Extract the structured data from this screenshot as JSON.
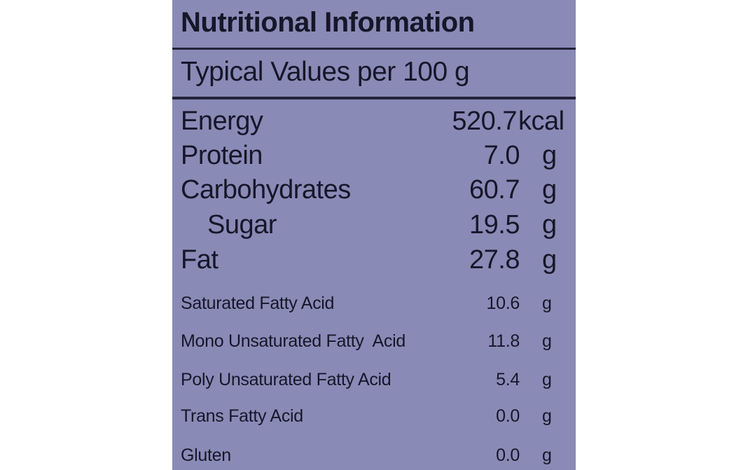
{
  "label": {
    "title": "Nutritional Information",
    "subtitle": "Typical Values per 100 g",
    "background_color": "#8a8ab6",
    "text_color": "#16162a",
    "rows": [
      {
        "name": "Energy",
        "value": "520.7",
        "unit": "kcal"
      },
      {
        "name": "Protein",
        "value": "7.0",
        "unit": "g"
      },
      {
        "name": "Carbohydrates",
        "value": "60.7",
        "unit": "g"
      },
      {
        "name": "Sugar",
        "value": "19.5",
        "unit": "g"
      },
      {
        "name": "Fat",
        "value": "27.8",
        "unit": "g"
      },
      {
        "name": "Saturated Fatty Acid",
        "value": "10.6",
        "unit": "g"
      },
      {
        "name": "Mono Unsaturated Fatty  Acid",
        "value": "11.8",
        "unit": "g"
      },
      {
        "name": "Poly Unsaturated Fatty Acid",
        "value": "5.4",
        "unit": "g"
      },
      {
        "name": "Trans Fatty Acid",
        "value": "0.0",
        "unit": "g"
      },
      {
        "name": "Gluten",
        "value": "0.0",
        "unit": "g"
      }
    ]
  }
}
